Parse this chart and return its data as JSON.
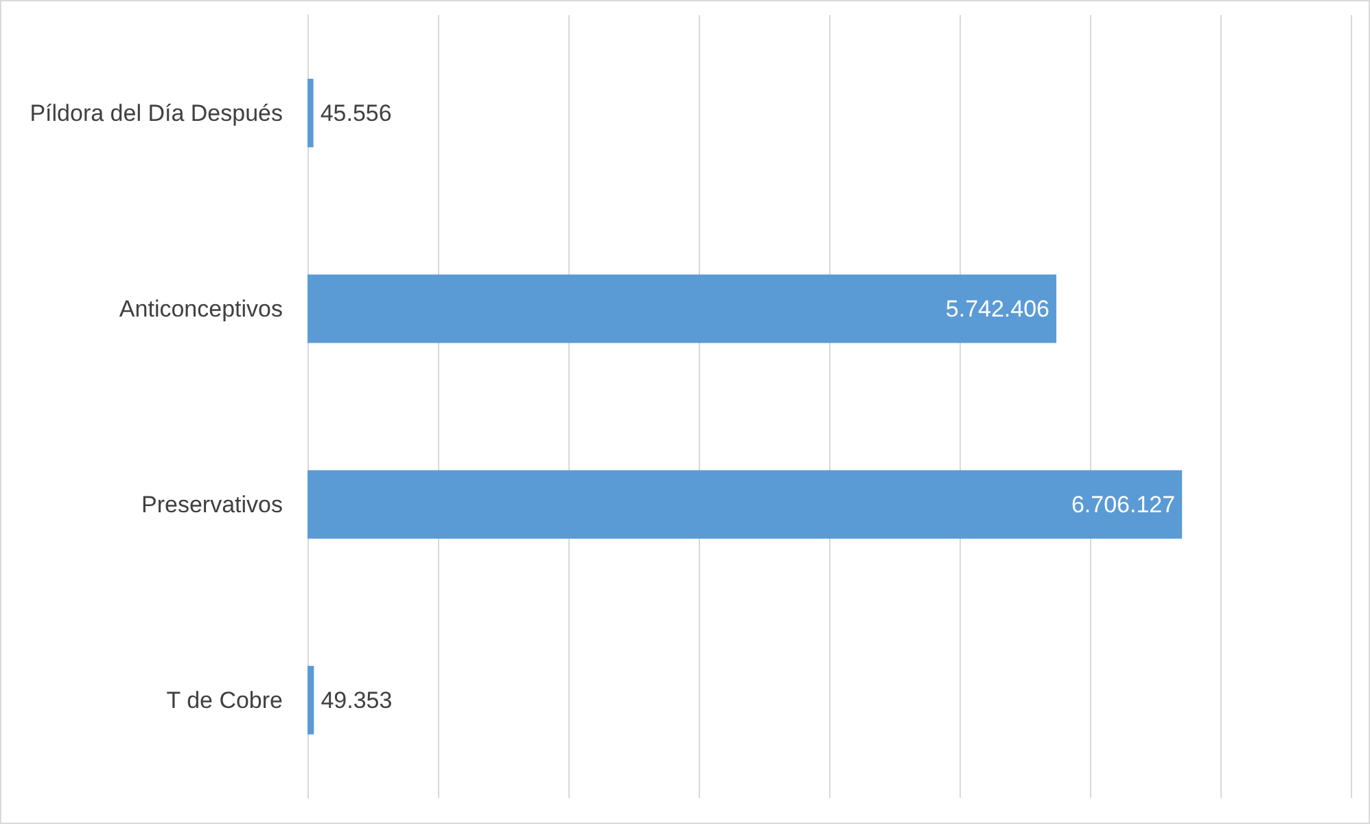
{
  "chart_data": {
    "type": "bar",
    "orientation": "horizontal",
    "categories": [
      "Píldora del Día Después",
      "Anticonceptivos",
      "Preservativos",
      "T de Cobre"
    ],
    "values": [
      45556,
      5742406,
      6706127,
      49353
    ],
    "value_labels": [
      "45.556",
      "5.742.406",
      "6.706.127",
      "49.353"
    ],
    "color": "#5b9bd5",
    "xlim": [
      0,
      8000000
    ],
    "xticks": [
      0,
      1000000,
      2000000,
      3000000,
      4000000,
      5000000,
      6000000,
      7000000,
      8000000
    ],
    "grid": "x",
    "tick_labels": "y"
  }
}
